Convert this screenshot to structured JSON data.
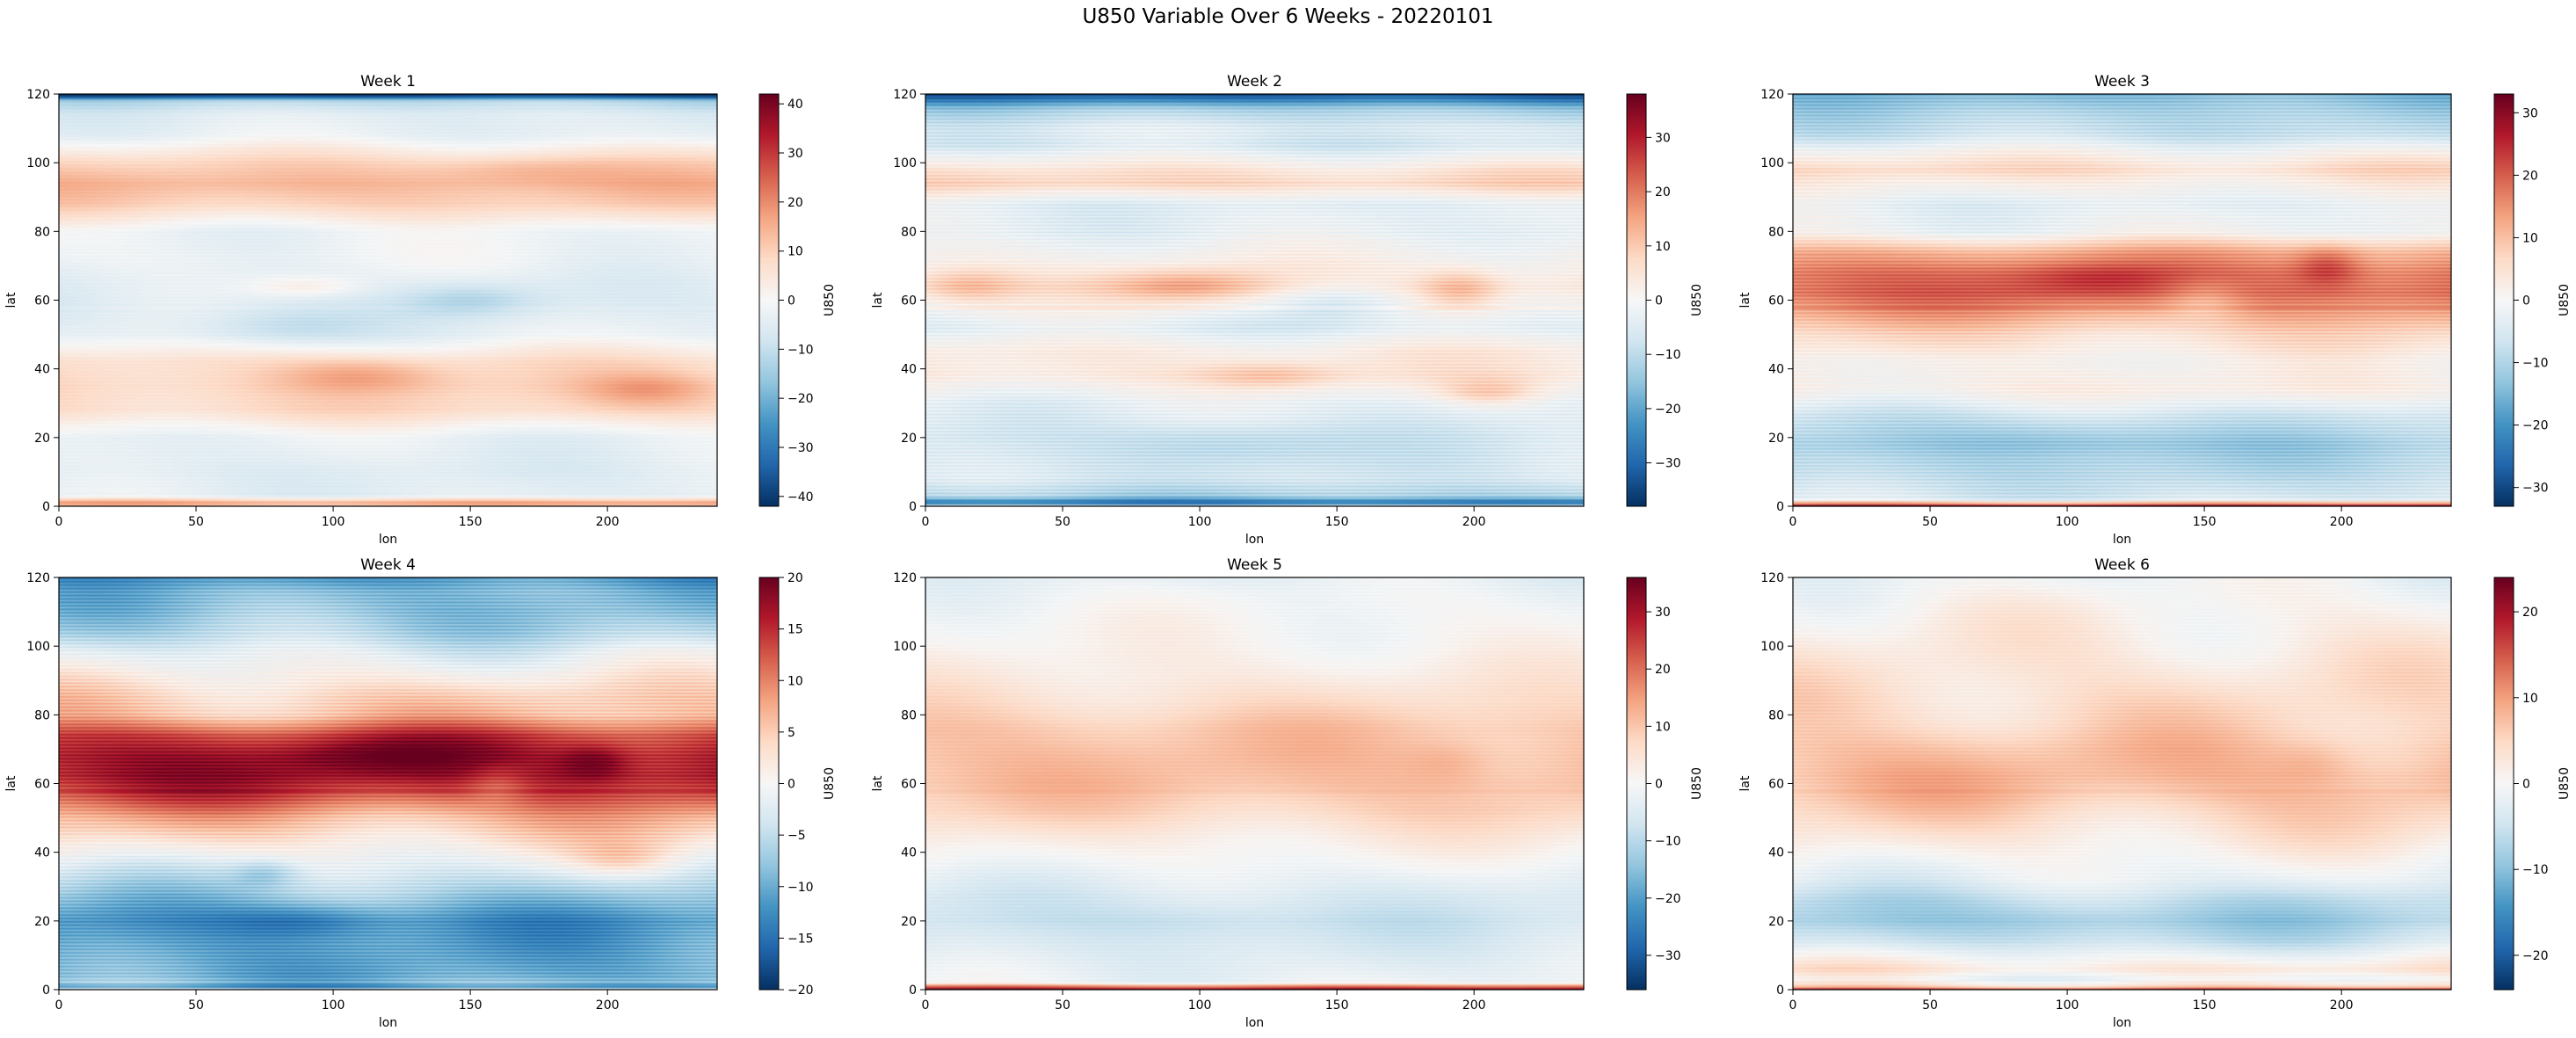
{
  "figure": {
    "suptitle": "U850 Variable Over 6 Weeks - 20220101",
    "colormap": "RdBu_r",
    "colormap_stops": [
      "#053061",
      "#2166ac",
      "#4393c3",
      "#92c5de",
      "#d1e5f0",
      "#f7f7f7",
      "#fddbc7",
      "#f4a582",
      "#d6604d",
      "#b2182b",
      "#67001f"
    ]
  },
  "chart_data": [
    {
      "type": "heatmap",
      "title": "Week 1",
      "xlabel": "lon",
      "ylabel": "lat",
      "xlim": [
        0,
        240
      ],
      "ylim": [
        0,
        120
      ],
      "x_ticks": [
        0,
        50,
        100,
        150,
        200
      ],
      "y_ticks": [
        0,
        20,
        40,
        60,
        80,
        100,
        120
      ],
      "colorbar": {
        "label": "U850",
        "range": [
          -42,
          42
        ],
        "ticks": [
          -40,
          -30,
          -20,
          -10,
          0,
          10,
          20,
          30,
          40
        ]
      },
      "lat_profile": [
        [
          0,
          10
        ],
        [
          1,
          18
        ],
        [
          3,
          -4
        ],
        [
          10,
          -5
        ],
        [
          20,
          -3
        ],
        [
          28,
          8
        ],
        [
          35,
          9
        ],
        [
          42,
          7
        ],
        [
          50,
          -3
        ],
        [
          58,
          -5
        ],
        [
          65,
          -4
        ],
        [
          72,
          -2
        ],
        [
          80,
          -2
        ],
        [
          88,
          10
        ],
        [
          94,
          14
        ],
        [
          100,
          9
        ],
        [
          108,
          -3
        ],
        [
          114,
          -5
        ],
        [
          118,
          -12
        ],
        [
          119.5,
          -40
        ],
        [
          120,
          -40
        ]
      ],
      "features": [
        {
          "lon": 110,
          "lat": 38,
          "amp": 9,
          "slon": 30,
          "slat": 5
        },
        {
          "lon": 215,
          "lat": 34,
          "amp": 9,
          "slon": 25,
          "slat": 5
        },
        {
          "lon": 150,
          "lat": 60,
          "amp": -8,
          "slon": 25,
          "slat": 5
        },
        {
          "lon": 80,
          "lat": 52,
          "amp": -7,
          "slon": 35,
          "slat": 6
        },
        {
          "lon": 90,
          "lat": 64,
          "amp": 7,
          "slon": 20,
          "slat": 3
        },
        {
          "lon": 170,
          "lat": 98,
          "amp": 5,
          "slon": 35,
          "slat": 4
        }
      ],
      "stripe_amp": 0.8
    },
    {
      "type": "heatmap",
      "title": "Week 2",
      "xlabel": "lon",
      "ylabel": "lat",
      "xlim": [
        0,
        240
      ],
      "ylim": [
        0,
        120
      ],
      "x_ticks": [
        0,
        50,
        100,
        150,
        200
      ],
      "y_ticks": [
        0,
        20,
        40,
        60,
        80,
        100,
        120
      ],
      "colorbar": {
        "label": "U850",
        "range": [
          -38,
          38
        ],
        "ticks": [
          -30,
          -20,
          -10,
          0,
          10,
          20,
          30
        ]
      },
      "lat_profile": [
        [
          0,
          -6
        ],
        [
          1,
          -30
        ],
        [
          3,
          -12
        ],
        [
          8,
          -6
        ],
        [
          20,
          -6
        ],
        [
          30,
          -3
        ],
        [
          38,
          4
        ],
        [
          45,
          3
        ],
        [
          52,
          -4
        ],
        [
          58,
          0
        ],
        [
          64,
          5
        ],
        [
          70,
          2
        ],
        [
          80,
          -3
        ],
        [
          88,
          -4
        ],
        [
          94,
          8
        ],
        [
          98,
          5
        ],
        [
          105,
          -6
        ],
        [
          110,
          -5
        ],
        [
          114,
          -10
        ],
        [
          116,
          -14
        ],
        [
          118,
          -24
        ],
        [
          119.5,
          -32
        ],
        [
          120,
          -32
        ]
      ],
      "features": [
        {
          "lon": 95,
          "lat": 64,
          "amp": 11,
          "slon": 30,
          "slat": 5
        },
        {
          "lon": 15,
          "lat": 64,
          "amp": 8,
          "slon": 18,
          "slat": 5
        },
        {
          "lon": 195,
          "lat": 63,
          "amp": 10,
          "slon": 15,
          "slat": 6
        },
        {
          "lon": 125,
          "lat": 38,
          "amp": 8,
          "slon": 25,
          "slat": 4
        },
        {
          "lon": 205,
          "lat": 33,
          "amp": 9,
          "slon": 18,
          "slat": 4
        },
        {
          "lon": 150,
          "lat": 60,
          "amp": -7,
          "slon": 25,
          "slat": 6
        },
        {
          "lon": 110,
          "lat": 18,
          "amp": -6,
          "slon": 40,
          "slat": 6
        }
      ],
      "stripe_amp": 2.5
    },
    {
      "type": "heatmap",
      "title": "Week 3",
      "xlabel": "lon",
      "ylabel": "lat",
      "xlim": [
        0,
        240
      ],
      "ylim": [
        0,
        120
      ],
      "x_ticks": [
        0,
        50,
        100,
        150,
        200
      ],
      "y_ticks": [
        0,
        20,
        40,
        60,
        80,
        100,
        120
      ],
      "colorbar": {
        "label": "U850",
        "range": [
          -33,
          33
        ],
        "ticks": [
          -30,
          -20,
          -10,
          0,
          10,
          20,
          30
        ]
      },
      "lat_profile": [
        [
          0,
          30
        ],
        [
          1,
          10
        ],
        [
          2,
          -5
        ],
        [
          10,
          -9
        ],
        [
          18,
          -11
        ],
        [
          26,
          -6
        ],
        [
          34,
          2
        ],
        [
          42,
          1
        ],
        [
          50,
          6
        ],
        [
          56,
          13
        ],
        [
          62,
          19
        ],
        [
          68,
          18
        ],
        [
          74,
          12
        ],
        [
          80,
          -1
        ],
        [
          88,
          -3
        ],
        [
          94,
          2
        ],
        [
          98,
          6
        ],
        [
          102,
          2
        ],
        [
          108,
          -7
        ],
        [
          114,
          -10
        ],
        [
          118,
          -13
        ],
        [
          120,
          -15
        ]
      ],
      "features": [
        {
          "lon": 110,
          "lat": 66,
          "amp": 6,
          "slon": 30,
          "slat": 5
        },
        {
          "lon": 195,
          "lat": 70,
          "amp": 8,
          "slon": 12,
          "slat": 6
        },
        {
          "lon": 150,
          "lat": 60,
          "amp": -6,
          "slon": 15,
          "slat": 6
        },
        {
          "lon": 100,
          "lat": 20,
          "amp": -4,
          "slon": 45,
          "slat": 6
        }
      ],
      "stripe_amp": 2.2
    },
    {
      "type": "heatmap",
      "title": "Week 4",
      "xlabel": "lon",
      "ylabel": "lat",
      "xlim": [
        0,
        240
      ],
      "ylim": [
        0,
        120
      ],
      "x_ticks": [
        0,
        50,
        100,
        150,
        200
      ],
      "y_ticks": [
        0,
        20,
        40,
        60,
        80,
        100,
        120
      ],
      "colorbar": {
        "label": "U850",
        "range": [
          -20,
          20
        ],
        "ticks": [
          -20,
          -15,
          -10,
          -5,
          0,
          5,
          10,
          15,
          20
        ]
      },
      "lat_profile": [
        [
          0,
          -2
        ],
        [
          1,
          -14
        ],
        [
          2,
          -8
        ],
        [
          4,
          -10
        ],
        [
          12,
          -11
        ],
        [
          20,
          -12
        ],
        [
          28,
          -7
        ],
        [
          36,
          -2
        ],
        [
          44,
          3
        ],
        [
          50,
          7
        ],
        [
          56,
          13
        ],
        [
          62,
          17
        ],
        [
          68,
          17
        ],
        [
          74,
          14
        ],
        [
          80,
          6
        ],
        [
          86,
          4
        ],
        [
          92,
          1
        ],
        [
          98,
          -2
        ],
        [
          104,
          -6
        ],
        [
          110,
          -8
        ],
        [
          116,
          -9
        ],
        [
          120,
          -12
        ]
      ],
      "features": [
        {
          "lon": 120,
          "lat": 68,
          "amp": 4,
          "slon": 35,
          "slat": 5
        },
        {
          "lon": 195,
          "lat": 66,
          "amp": 5,
          "slon": 12,
          "slat": 5
        },
        {
          "lon": 160,
          "lat": 60,
          "amp": -4,
          "slon": 12,
          "slat": 6
        },
        {
          "lon": 90,
          "lat": 20,
          "amp": -4,
          "slon": 30,
          "slat": 5
        },
        {
          "lon": 205,
          "lat": 38,
          "amp": 4,
          "slon": 18,
          "slat": 5
        },
        {
          "lon": 75,
          "lat": 34,
          "amp": -4,
          "slon": 12,
          "slat": 4
        }
      ],
      "stripe_amp": 1.5
    },
    {
      "type": "heatmap",
      "title": "Week 5",
      "xlabel": "lon",
      "ylabel": "lat",
      "xlim": [
        0,
        240
      ],
      "ylim": [
        0,
        120
      ],
      "x_ticks": [
        0,
        50,
        100,
        150,
        200
      ],
      "y_ticks": [
        0,
        20,
        40,
        60,
        80,
        100,
        120
      ],
      "colorbar": {
        "label": "U850",
        "range": [
          -36,
          36
        ],
        "ticks": [
          -30,
          -20,
          -10,
          0,
          10,
          20,
          30
        ]
      },
      "lat_profile": [
        [
          0,
          34
        ],
        [
          1,
          18
        ],
        [
          2,
          -2
        ],
        [
          5,
          -3
        ],
        [
          12,
          -5
        ],
        [
          20,
          -7
        ],
        [
          28,
          -5
        ],
        [
          36,
          -1
        ],
        [
          44,
          3
        ],
        [
          52,
          8
        ],
        [
          60,
          11
        ],
        [
          68,
          11
        ],
        [
          76,
          10
        ],
        [
          84,
          6
        ],
        [
          92,
          3
        ],
        [
          100,
          1
        ],
        [
          108,
          0
        ],
        [
          114,
          -1
        ],
        [
          120,
          -3
        ]
      ],
      "features": [
        {
          "lon": 100,
          "lat": 20,
          "amp": -3,
          "slon": 40,
          "slat": 6
        },
        {
          "lon": 190,
          "lat": 66,
          "amp": 3,
          "slon": 15,
          "slat": 6
        }
      ],
      "stripe_amp": 0.8
    },
    {
      "type": "heatmap",
      "title": "Week 6",
      "xlabel": "lon",
      "ylabel": "lat",
      "xlim": [
        0,
        240
      ],
      "ylim": [
        0,
        120
      ],
      "x_ticks": [
        0,
        50,
        100,
        150,
        200
      ],
      "y_ticks": [
        0,
        20,
        40,
        60,
        80,
        100,
        120
      ],
      "colorbar": {
        "label": "U850",
        "range": [
          -24,
          24
        ],
        "ticks": [
          -20,
          -10,
          0,
          10,
          20
        ]
      },
      "lat_profile": [
        [
          0,
          18
        ],
        [
          1,
          4
        ],
        [
          3,
          -1
        ],
        [
          6,
          3
        ],
        [
          9,
          0
        ],
        [
          14,
          -5
        ],
        [
          20,
          -8
        ],
        [
          26,
          -6
        ],
        [
          32,
          -2
        ],
        [
          40,
          1
        ],
        [
          48,
          4
        ],
        [
          56,
          7
        ],
        [
          62,
          8
        ],
        [
          70,
          7
        ],
        [
          78,
          5
        ],
        [
          86,
          4
        ],
        [
          94,
          3
        ],
        [
          102,
          2
        ],
        [
          110,
          1
        ],
        [
          116,
          0
        ],
        [
          120,
          -1
        ]
      ],
      "features": [
        {
          "lon": 100,
          "lat": 20,
          "amp": -2,
          "slon": 40,
          "slat": 6
        },
        {
          "lon": 190,
          "lat": 66,
          "amp": 2,
          "slon": 15,
          "slat": 6
        }
      ],
      "stripe_amp": 0.7
    }
  ]
}
